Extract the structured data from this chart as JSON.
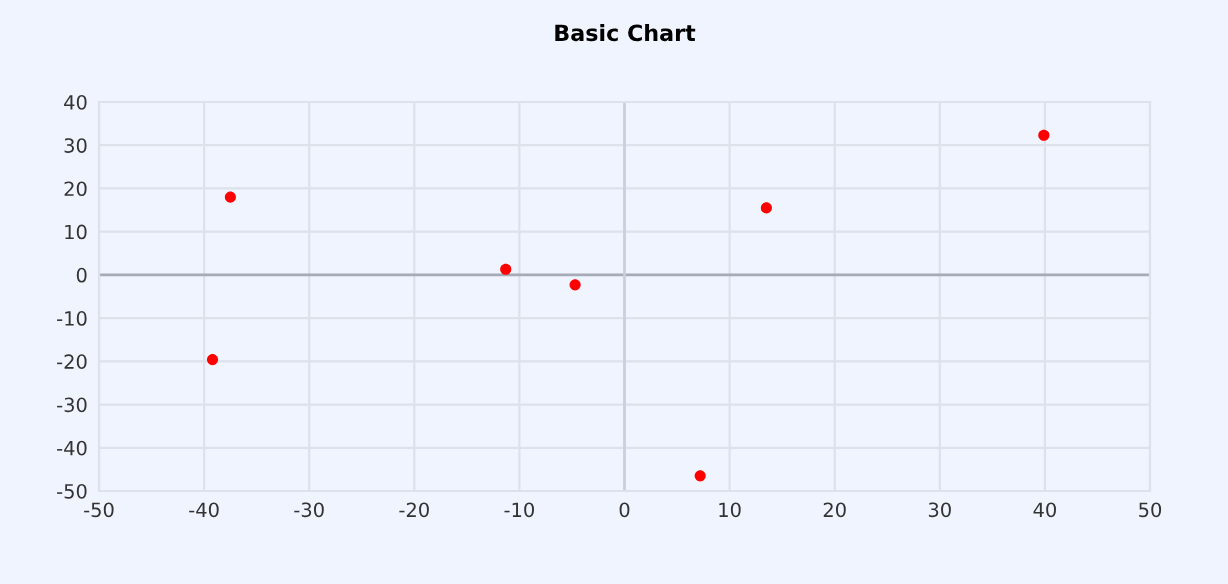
{
  "chart_data": {
    "type": "scatter",
    "title": "Basic Chart",
    "x": [
      -39.2,
      -37.5,
      -11.3,
      -4.7,
      7.2,
      13.5,
      39.9
    ],
    "values": [
      -19.6,
      18,
      1.3,
      -2.3,
      -46.5,
      15.5,
      32.3
    ],
    "color": "#ff0000",
    "marker": "circle",
    "xlim": [
      -50,
      50
    ],
    "xticks": [
      -50,
      -40,
      -30,
      -20,
      -10,
      0,
      10,
      20,
      30,
      40,
      50
    ],
    "ylim": [
      -50,
      40
    ],
    "yticks": [
      -50,
      -40,
      -30,
      -20,
      -10,
      0,
      10,
      20,
      30,
      40
    ],
    "grid": true,
    "ref_lines": [
      {
        "axis": "y",
        "value": 0,
        "color": "#a6abb8"
      },
      {
        "axis": "x",
        "value": 0,
        "color": "#c9cfdc"
      }
    ]
  }
}
